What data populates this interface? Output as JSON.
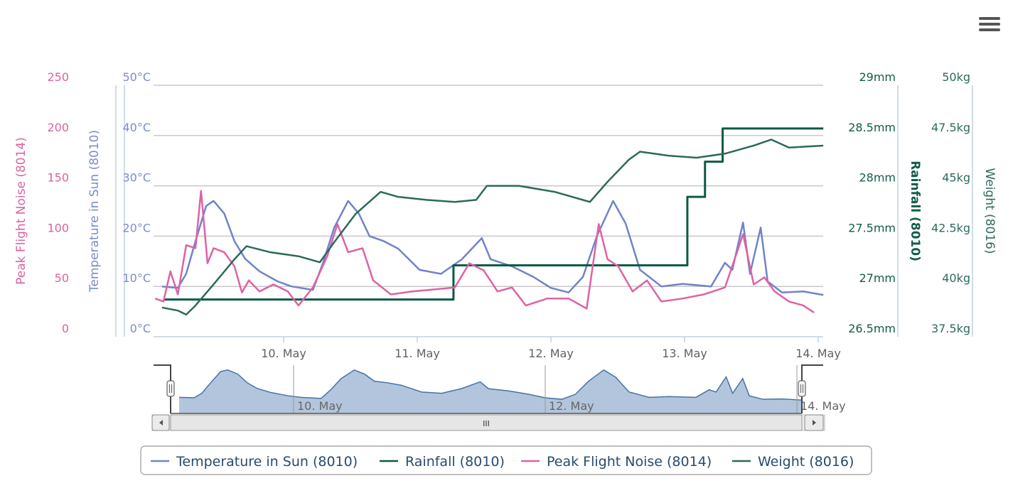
{
  "menu_icon": "hamburger-menu-icon",
  "chart_data": {
    "type": "line",
    "xlim": [
      "9 May 00:36",
      "14 May 01:00"
    ],
    "x_ticks": [
      {
        "time": "10 May 00:00",
        "label": "10. May"
      },
      {
        "time": "11 May 00:00",
        "label": "11. May"
      },
      {
        "time": "12 May 00:00",
        "label": "12. May"
      },
      {
        "time": "13 May 00:00",
        "label": "13. May"
      },
      {
        "time": "14 May 00:00",
        "label": "14. May"
      }
    ],
    "grid": true,
    "legend_placement": "bottom",
    "axes": {
      "noise": {
        "title": "Peak Flight Noise (8014)",
        "side": "left",
        "range": [
          0,
          250
        ],
        "ticks": [
          "0",
          "50",
          "100",
          "150",
          "200",
          "250"
        ],
        "color": "#d9649f"
      },
      "temp": {
        "title": "Temperature in Sun (8010)",
        "side": "left",
        "range": [
          0,
          50
        ],
        "ticks": [
          "0°C",
          "10°C",
          "20°C",
          "30°C",
          "40°C",
          "50°C"
        ],
        "color": "#7b8bcb"
      },
      "rain": {
        "title": "Rainfall (8010)",
        "side": "right",
        "range": [
          26.5,
          29
        ],
        "ticks": [
          "26.5mm",
          "27mm",
          "27.5mm",
          "28mm",
          "28.5mm",
          "29mm"
        ],
        "color": "#125c4a"
      },
      "weight": {
        "title": "Weight (8016)",
        "side": "right",
        "range": [
          37.5,
          50
        ],
        "ticks": [
          "37.5kg",
          "40kg",
          "42.5kg",
          "45kg",
          "47.5kg",
          "50kg"
        ],
        "color": "#2d6b5e"
      }
    },
    "series": [
      {
        "name": "Temperature in Sun (8010)",
        "axis": "temp",
        "color": "#7083c9",
        "step": false,
        "points": [
          [
            "9 May 02:10",
            10
          ],
          [
            "9 May 05:00",
            9.7
          ],
          [
            "9 May 06:30",
            12.5
          ],
          [
            "9 May 08:10",
            19
          ],
          [
            "9 May 10:05",
            26
          ],
          [
            "9 May 11:25",
            27
          ],
          [
            "9 May 13:20",
            24.5
          ],
          [
            "9 May 15:10",
            19
          ],
          [
            "9 May 17:05",
            15.5
          ],
          [
            "9 May 19:40",
            13
          ],
          [
            "9 May 22:55",
            11
          ],
          [
            "10 May 01:25",
            10
          ],
          [
            "10 May 05:15",
            9.3
          ],
          [
            "10 May 07:05",
            14.7
          ],
          [
            "10 May 09:05",
            21.7
          ],
          [
            "10 May 11:35",
            27
          ],
          [
            "10 May 13:30",
            24.5
          ],
          [
            "10 May 15:25",
            20
          ],
          [
            "10 May 18:00",
            19
          ],
          [
            "10 May 20:35",
            17.5
          ],
          [
            "11 May 00:25",
            13.3
          ],
          [
            "11 May 04:15",
            12.5
          ],
          [
            "11 May 08:00",
            15.4
          ],
          [
            "11 May 11:35",
            19.6
          ],
          [
            "11 May 13:10",
            15.4
          ],
          [
            "11 May 17:00",
            14
          ],
          [
            "11 May 20:50",
            11.9
          ],
          [
            "12 May 00:00",
            9.7
          ],
          [
            "12 May 03:10",
            8.8
          ],
          [
            "12 May 05:45",
            11.9
          ],
          [
            "12 May 08:15",
            20
          ],
          [
            "12 May 11:10",
            27
          ],
          [
            "12 May 13:25",
            22.5
          ],
          [
            "12 May 16:00",
            13.3
          ],
          [
            "12 May 19:50",
            10
          ],
          [
            "12 May 23:40",
            10.5
          ],
          [
            "13 May 04:45",
            10
          ],
          [
            "13 May 07:15",
            14.7
          ],
          [
            "13 May 08:35",
            13.3
          ],
          [
            "13 May 10:30",
            22.7
          ],
          [
            "13 May 11:45",
            12.5
          ],
          [
            "13 May 13:40",
            21.7
          ],
          [
            "13 May 14:55",
            11
          ],
          [
            "13 May 17:30",
            8.8
          ],
          [
            "13 May 21:20",
            9
          ],
          [
            "14 May 00:55",
            8.3
          ]
        ]
      },
      {
        "name": "Rainfall (8010)",
        "axis": "rain",
        "color": "#0b5a45",
        "step": true,
        "points": [
          [
            "9 May 02:25",
            26.87
          ],
          [
            "11 May 06:30",
            27.21
          ],
          [
            "13 May 00:30",
            27.89
          ],
          [
            "13 May 03:40",
            28.24
          ],
          [
            "13 May 06:50",
            28.57
          ],
          [
            "14 May 00:55",
            28.57
          ]
        ]
      },
      {
        "name": "Peak Flight Noise (8014)",
        "axis": "noise",
        "color": "#df62a3",
        "step": false,
        "points": [
          [
            "9 May 00:55",
            38
          ],
          [
            "9 May 02:25",
            35
          ],
          [
            "9 May 03:40",
            65
          ],
          [
            "9 May 05:00",
            42
          ],
          [
            "9 May 06:30",
            91
          ],
          [
            "9 May 08:10",
            88
          ],
          [
            "9 May 09:10",
            145
          ],
          [
            "9 May 10:20",
            73
          ],
          [
            "9 May 11:25",
            88
          ],
          [
            "9 May 13:20",
            84
          ],
          [
            "9 May 15:10",
            70
          ],
          [
            "9 May 16:30",
            44
          ],
          [
            "9 May 17:45",
            56
          ],
          [
            "9 May 19:40",
            45
          ],
          [
            "9 May 22:10",
            52
          ],
          [
            "10 May 00:45",
            45
          ],
          [
            "10 May 02:40",
            31
          ],
          [
            "10 May 05:15",
            49
          ],
          [
            "10 May 07:50",
            80
          ],
          [
            "10 May 09:40",
            112
          ],
          [
            "10 May 11:35",
            84
          ],
          [
            "10 May 14:10",
            88
          ],
          [
            "10 May 16:05",
            56
          ],
          [
            "10 May 19:15",
            42
          ],
          [
            "10 May 23:05",
            45
          ],
          [
            "11 May 02:55",
            47
          ],
          [
            "11 May 06:45",
            49
          ],
          [
            "11 May 09:20",
            73
          ],
          [
            "11 May 11:55",
            66
          ],
          [
            "11 May 14:25",
            45
          ],
          [
            "11 May 17:00",
            49
          ],
          [
            "11 May 19:30",
            31
          ],
          [
            "11 May 23:20",
            38
          ],
          [
            "12 May 03:10",
            38
          ],
          [
            "12 May 06:25",
            28
          ],
          [
            "12 May 08:35",
            112
          ],
          [
            "12 May 10:10",
            77
          ],
          [
            "12 May 12:05",
            70
          ],
          [
            "12 May 14:40",
            45
          ],
          [
            "12 May 17:15",
            56
          ],
          [
            "12 May 19:50",
            35
          ],
          [
            "12 May 23:40",
            38
          ],
          [
            "13 May 03:25",
            42
          ],
          [
            "13 May 07:15",
            49
          ],
          [
            "13 May 09:10",
            80
          ],
          [
            "13 May 10:30",
            102
          ],
          [
            "13 May 12:25",
            52
          ],
          [
            "13 May 14:20",
            59
          ],
          [
            "13 May 16:10",
            45
          ],
          [
            "13 May 18:45",
            35
          ],
          [
            "13 May 21:20",
            31
          ],
          [
            "13 May 23:15",
            24
          ]
        ]
      },
      {
        "name": "Weight (8016)",
        "axis": "weight",
        "color": "#2b6a5b",
        "step": false,
        "points": [
          [
            "9 May 02:10",
            38.95
          ],
          [
            "9 May 05:00",
            38.8
          ],
          [
            "9 May 06:30",
            38.6
          ],
          [
            "9 May 08:10",
            39.05
          ],
          [
            "9 May 11:25",
            40.1
          ],
          [
            "9 May 15:10",
            41.35
          ],
          [
            "9 May 17:20",
            42
          ],
          [
            "9 May 21:35",
            41.7
          ],
          [
            "10 May 02:40",
            41.5
          ],
          [
            "10 May 06:30",
            41.2
          ],
          [
            "10 May 09:05",
            42.2
          ],
          [
            "10 May 12:55",
            43.6
          ],
          [
            "10 May 17:25",
            44.7
          ],
          [
            "10 May 20:35",
            44.45
          ],
          [
            "11 May 01:40",
            44.3
          ],
          [
            "11 May 06:45",
            44.2
          ],
          [
            "11 May 10:35",
            44.3
          ],
          [
            "11 May 12:30",
            45
          ],
          [
            "11 May 18:15",
            45
          ],
          [
            "12 May 00:40",
            44.7
          ],
          [
            "12 May 07:00",
            44.2
          ],
          [
            "12 May 10:10",
            45.2
          ],
          [
            "12 May 14:00",
            46.3
          ],
          [
            "12 May 16:00",
            46.7
          ],
          [
            "12 May 21:05",
            46.5
          ],
          [
            "13 May 02:10",
            46.4
          ],
          [
            "13 May 07:15",
            46.6
          ],
          [
            "13 May 12:25",
            47
          ],
          [
            "13 May 15:35",
            47.3
          ],
          [
            "13 May 18:45",
            46.9
          ],
          [
            "14 May 00:55",
            47
          ]
        ]
      }
    ],
    "navigator": {
      "series": "Temperature in Sun (8010)",
      "labels": [
        {
          "time": "10 May 00:00",
          "label": "10. May"
        },
        {
          "time": "12 May 00:00",
          "label": "12. May"
        },
        {
          "time": "14 May 00:00",
          "label": "14. May"
        }
      ],
      "fill_color": "#b3c5dc",
      "line_color": "#4572a7"
    }
  }
}
